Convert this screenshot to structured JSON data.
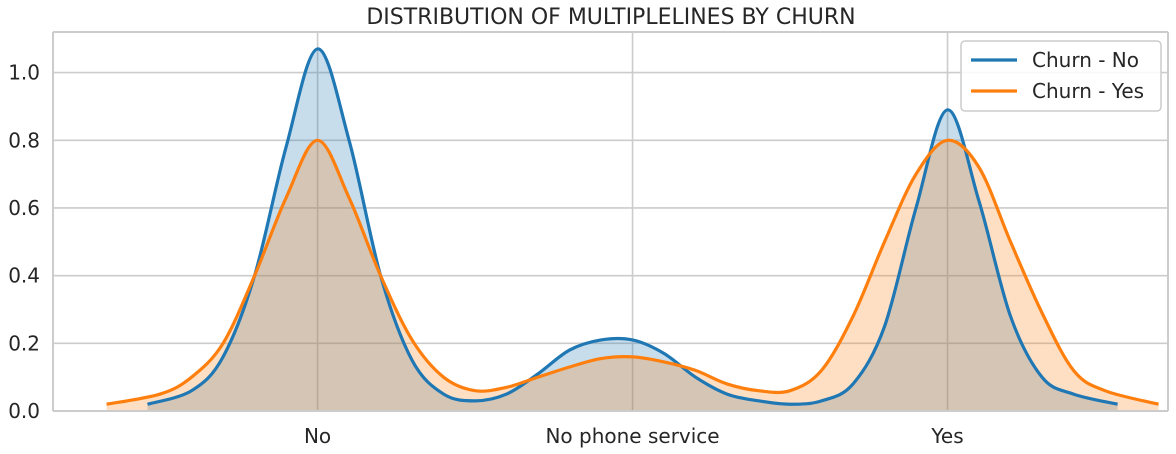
{
  "chart_data": {
    "type": "area",
    "title": "DISTRIBUTION OF MULTIPLELINES BY CHURN",
    "xlabel": "",
    "ylabel": "",
    "categories": [
      "No",
      "No phone service",
      "Yes"
    ],
    "xlim": [
      -0.84,
      2.7
    ],
    "ylim": [
      0,
      1.12
    ],
    "y_ticks": [
      "0.0",
      "0.2",
      "0.4",
      "0.6",
      "0.8",
      "1.0"
    ],
    "grid": true,
    "legend_position": "top-right",
    "series": [
      {
        "name": "Churn - No",
        "color": "#1f77b4",
        "fill_color": "#aecbe6",
        "x": [
          -0.54,
          -0.4,
          -0.3,
          -0.2,
          -0.1,
          0.0,
          0.1,
          0.2,
          0.3,
          0.4,
          0.5,
          0.6,
          0.7,
          0.8,
          0.9,
          1.0,
          1.1,
          1.2,
          1.3,
          1.4,
          1.5,
          1.6,
          1.7,
          1.8,
          1.9,
          2.0,
          2.1,
          2.2,
          2.3,
          2.4,
          2.54
        ],
        "y": [
          0.02,
          0.06,
          0.16,
          0.4,
          0.78,
          1.07,
          0.8,
          0.4,
          0.15,
          0.05,
          0.03,
          0.05,
          0.11,
          0.18,
          0.21,
          0.21,
          0.17,
          0.1,
          0.05,
          0.03,
          0.02,
          0.03,
          0.08,
          0.25,
          0.6,
          0.89,
          0.62,
          0.28,
          0.1,
          0.05,
          0.02
        ]
      },
      {
        "name": "Churn - Yes",
        "color": "#ff7f0e",
        "fill_color": "#ffd3ab",
        "x": [
          -0.67,
          -0.5,
          -0.4,
          -0.3,
          -0.2,
          -0.1,
          0.0,
          0.1,
          0.2,
          0.3,
          0.4,
          0.5,
          0.6,
          0.7,
          0.8,
          0.9,
          1.0,
          1.1,
          1.2,
          1.3,
          1.4,
          1.5,
          1.6,
          1.7,
          1.8,
          1.9,
          2.0,
          2.1,
          2.2,
          2.3,
          2.4,
          2.5,
          2.67
        ],
        "y": [
          0.02,
          0.05,
          0.1,
          0.2,
          0.4,
          0.63,
          0.8,
          0.63,
          0.4,
          0.21,
          0.1,
          0.06,
          0.07,
          0.1,
          0.13,
          0.155,
          0.16,
          0.145,
          0.12,
          0.08,
          0.06,
          0.06,
          0.12,
          0.28,
          0.5,
          0.7,
          0.8,
          0.72,
          0.5,
          0.29,
          0.12,
          0.06,
          0.02
        ]
      }
    ]
  }
}
